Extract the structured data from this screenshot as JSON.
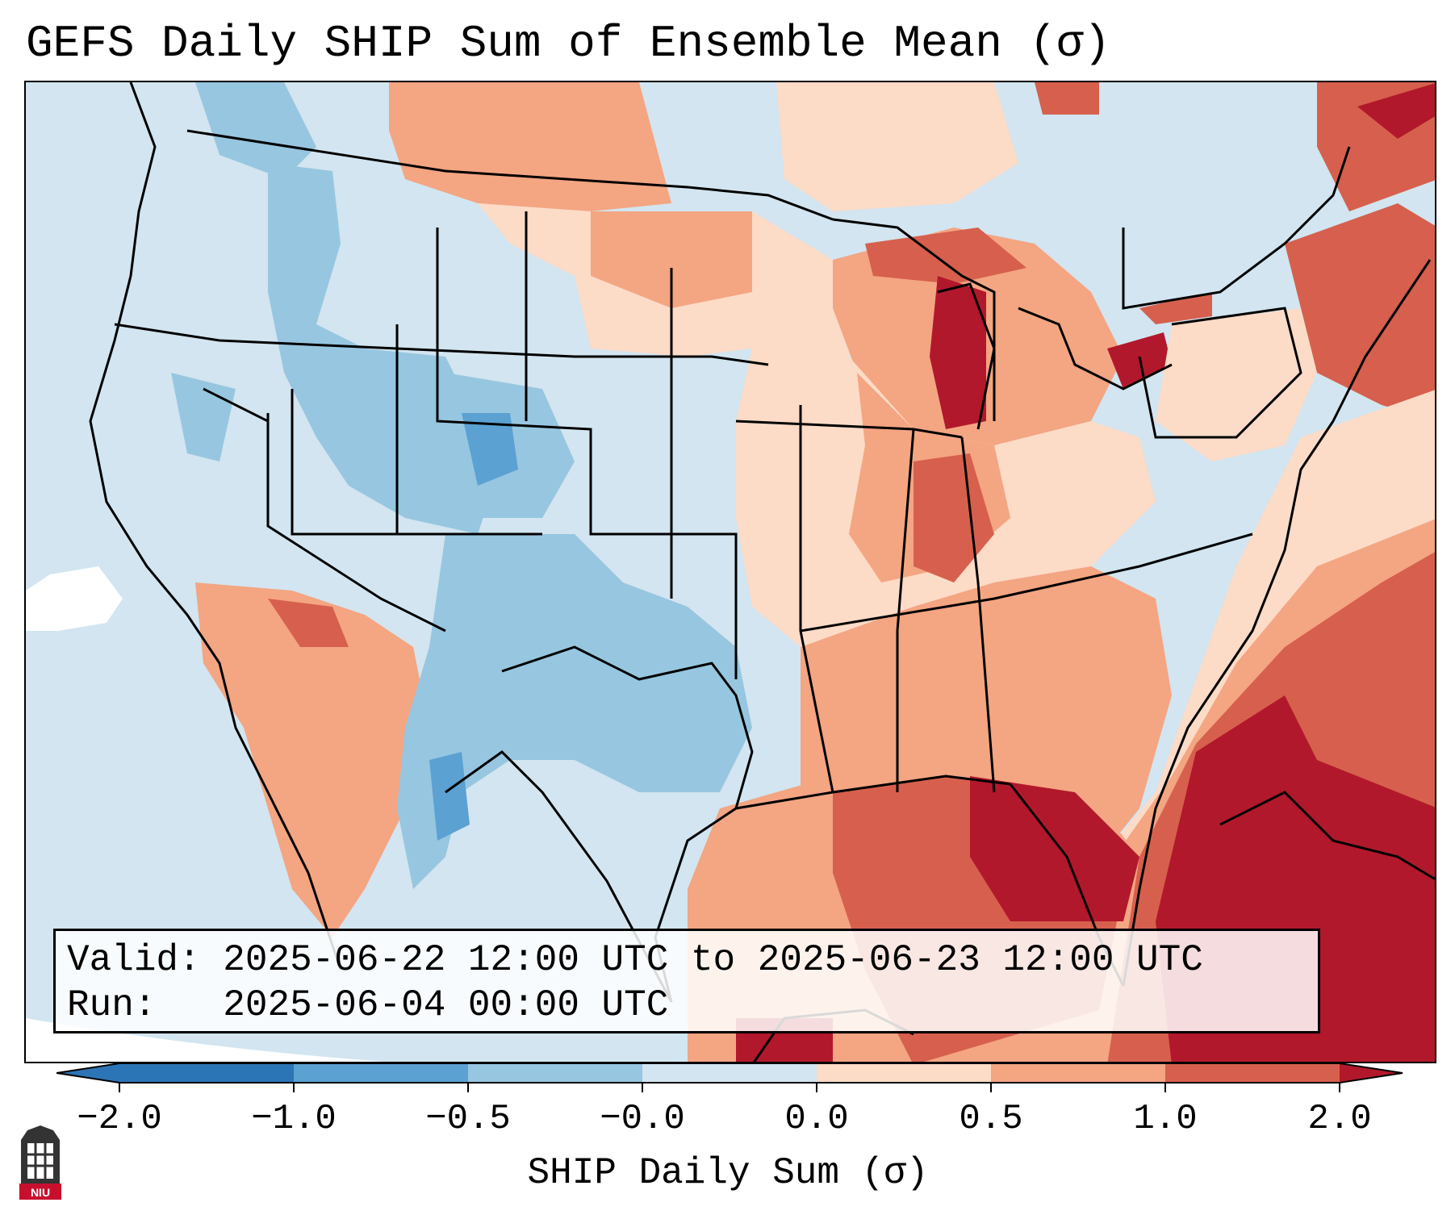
{
  "title": "GEFS Daily SHIP Sum of Ensemble Mean (σ)",
  "info": {
    "valid_label": "Valid:",
    "valid_value": "2025-06-22 12:00 UTC to 2025-06-23 12:00 UTC",
    "run_label": "Run:",
    "run_value": "2025-06-04 00:00 UTC"
  },
  "colorbar": {
    "label": "SHIP Daily Sum (σ)",
    "ticks": [
      "−2.0",
      "−1.0",
      "−0.5",
      "−0.0",
      "0.0",
      "0.5",
      "1.0",
      "2.0"
    ],
    "colors": [
      "#2b75b6",
      "#5ba1d2",
      "#97c6e0",
      "#d2e5f0",
      "#fcdbc7",
      "#f4a582",
      "#d6604d",
      "#b2182b"
    ],
    "extend": "both"
  },
  "logo": {
    "text": "NIU"
  },
  "icons": [
    "niu-logo-icon"
  ]
}
